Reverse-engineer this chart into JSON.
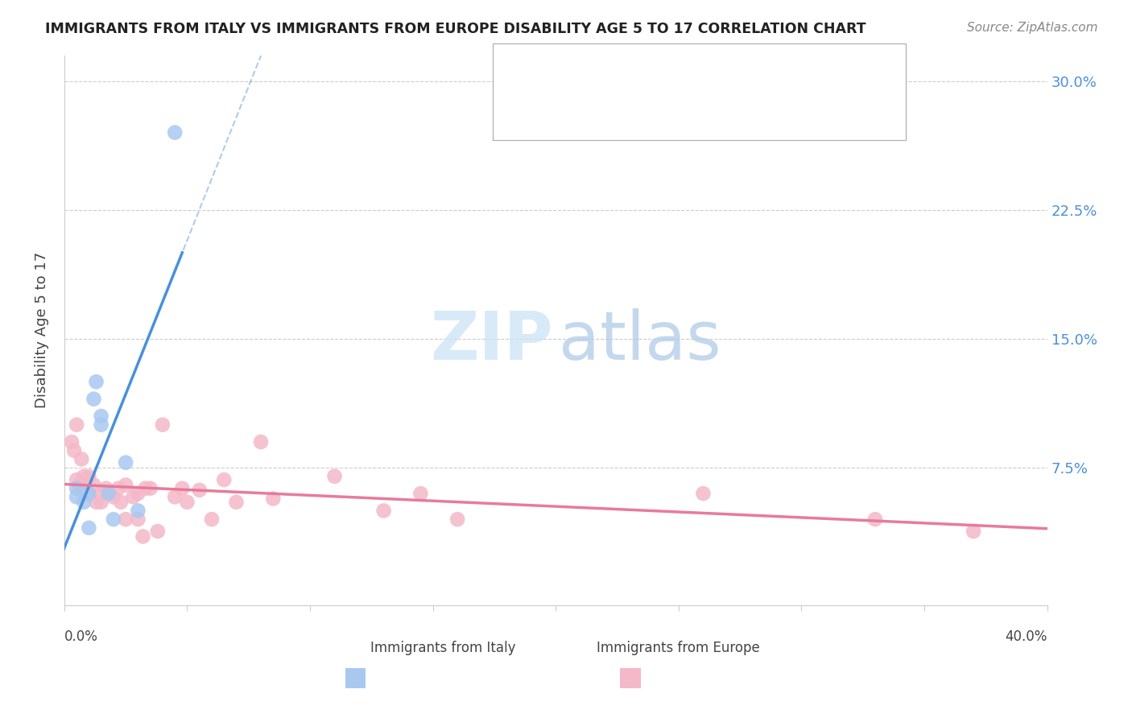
{
  "title": "IMMIGRANTS FROM ITALY VS IMMIGRANTS FROM EUROPE DISABILITY AGE 5 TO 17 CORRELATION CHART",
  "source": "Source: ZipAtlas.com",
  "ylabel": "Disability Age 5 to 17",
  "yticks": [
    0.0,
    0.075,
    0.15,
    0.225,
    0.3
  ],
  "ytick_labels": [
    "",
    "7.5%",
    "15.0%",
    "22.5%",
    "30.0%"
  ],
  "xlim": [
    0.0,
    0.4
  ],
  "ylim": [
    -0.005,
    0.315
  ],
  "legend_label_italy": "Immigrants from Italy",
  "legend_label_europe": "Immigrants from Europe",
  "color_italy": "#a8c8f0",
  "color_europe": "#f4b8c8",
  "color_italy_line": "#4a90d9",
  "color_europe_line": "#e87a9a",
  "color_legend_text": "#4a90d9",
  "italy_x": [
    0.005,
    0.005,
    0.008,
    0.01,
    0.01,
    0.012,
    0.013,
    0.015,
    0.015,
    0.018,
    0.02,
    0.025,
    0.03,
    0.045
  ],
  "italy_y": [
    0.063,
    0.058,
    0.055,
    0.06,
    0.04,
    0.115,
    0.125,
    0.105,
    0.1,
    0.06,
    0.045,
    0.078,
    0.05,
    0.27
  ],
  "europe_x": [
    0.003,
    0.004,
    0.005,
    0.005,
    0.006,
    0.007,
    0.007,
    0.008,
    0.008,
    0.01,
    0.01,
    0.012,
    0.013,
    0.015,
    0.015,
    0.017,
    0.018,
    0.02,
    0.022,
    0.023,
    0.025,
    0.025,
    0.028,
    0.03,
    0.03,
    0.032,
    0.033,
    0.035,
    0.038,
    0.04,
    0.045,
    0.048,
    0.05,
    0.055,
    0.06,
    0.065,
    0.07,
    0.08,
    0.085,
    0.11,
    0.13,
    0.145,
    0.16,
    0.26,
    0.33,
    0.37
  ],
  "europe_y": [
    0.09,
    0.085,
    0.1,
    0.068,
    0.065,
    0.08,
    0.065,
    0.07,
    0.06,
    0.07,
    0.06,
    0.065,
    0.055,
    0.06,
    0.055,
    0.063,
    0.06,
    0.058,
    0.063,
    0.055,
    0.065,
    0.045,
    0.058,
    0.06,
    0.045,
    0.035,
    0.063,
    0.063,
    0.038,
    0.1,
    0.058,
    0.063,
    0.055,
    0.062,
    0.045,
    0.068,
    0.055,
    0.09,
    0.057,
    0.07,
    0.05,
    0.06,
    0.045,
    0.06,
    0.045,
    0.038
  ]
}
